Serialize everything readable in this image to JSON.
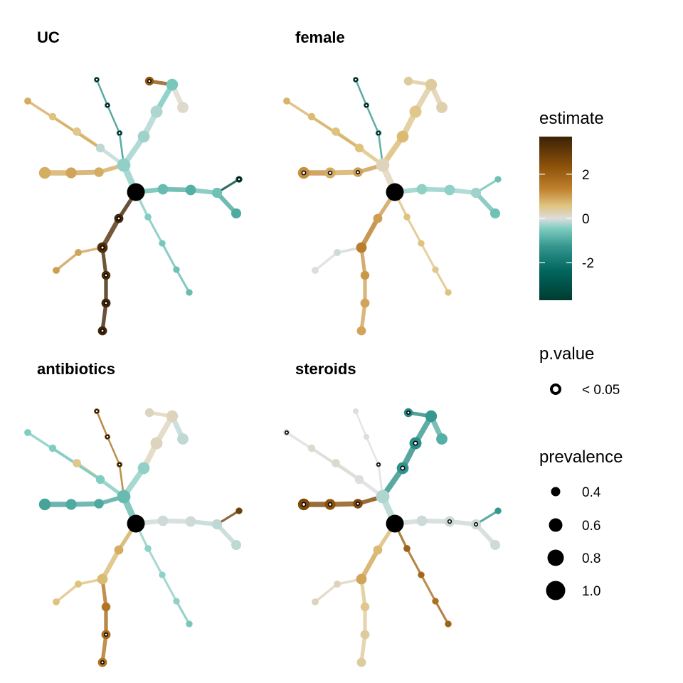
{
  "chart_data": {
    "type": "tree",
    "colors": {
      "low": "#003c30",
      "teal": "#35978f",
      "light_teal": "#80cdc1",
      "neutral": "#d9d9d9",
      "light_brown": "#dfc27d",
      "brown": "#bf812d",
      "dark": "#543005"
    },
    "legend": {
      "estimate": {
        "title": "estimate",
        "range": [
          -3.7,
          3.7
        ],
        "ticks": [
          2,
          0,
          -2
        ],
        "tick_labels": [
          "2",
          "0",
          "-2"
        ]
      },
      "pvalue": {
        "title": "p.value",
        "label": "< 0.05"
      },
      "prevalence": {
        "title": "prevalence",
        "values": [
          0.4,
          0.6,
          0.8,
          1.0
        ],
        "labels": [
          "0.4",
          "0.6",
          "0.8",
          "1.0"
        ]
      }
    },
    "tree": {
      "nodes": [
        {
          "id": "root",
          "prevalence": 1.0
        },
        {
          "id": "A",
          "parent": "root",
          "prevalence": 0.82
        },
        {
          "id": "A1",
          "parent": "A",
          "prevalence": 0.58
        },
        {
          "id": "A1a",
          "parent": "A1",
          "prevalence": 0.55
        },
        {
          "id": "A1b",
          "parent": "A1",
          "prevalence": 0.48
        },
        {
          "id": "A1c",
          "parent": "A1",
          "prevalence": 0.45
        },
        {
          "id": "A2",
          "parent": "A",
          "prevalence": 0.37
        },
        {
          "id": "A2a",
          "parent": "A2",
          "prevalence": 0.34
        },
        {
          "id": "A2b",
          "parent": "A2a",
          "prevalence": 0.33
        },
        {
          "id": "A3",
          "parent": "A",
          "prevalence": 0.75
        },
        {
          "id": "A3a",
          "parent": "A3",
          "prevalence": 0.76
        },
        {
          "id": "A3b",
          "parent": "A3a",
          "prevalence": 0.74
        },
        {
          "id": "A3b1",
          "parent": "A3b",
          "prevalence": 0.58
        },
        {
          "id": "A3b2",
          "parent": "A3b",
          "prevalence": 0.72
        },
        {
          "id": "B",
          "parent": "A",
          "prevalence": 0.63
        },
        {
          "id": "B1",
          "parent": "B",
          "prevalence": 0.7
        },
        {
          "id": "B2",
          "parent": "B1",
          "prevalence": 0.74
        },
        {
          "id": "C",
          "parent": "root",
          "prevalence": 0.68
        },
        {
          "id": "C1",
          "parent": "C",
          "prevalence": 0.68
        },
        {
          "id": "C2",
          "parent": "C1",
          "prevalence": 0.66
        },
        {
          "id": "C3",
          "parent": "C2",
          "prevalence": 0.42
        },
        {
          "id": "C4",
          "parent": "C2",
          "prevalence": 0.65
        },
        {
          "id": "D",
          "parent": "root",
          "prevalence": 0.44
        },
        {
          "id": "D1",
          "parent": "D",
          "prevalence": 0.42
        },
        {
          "id": "D2",
          "parent": "D1",
          "prevalence": 0.42
        },
        {
          "id": "D3",
          "parent": "D2",
          "prevalence": 0.42
        },
        {
          "id": "E",
          "parent": "root",
          "prevalence": 0.6
        },
        {
          "id": "E1",
          "parent": "E",
          "prevalence": 0.68
        },
        {
          "id": "E2",
          "parent": "E1",
          "prevalence": 0.58
        },
        {
          "id": "E2a",
          "parent": "E2",
          "prevalence": 0.6
        },
        {
          "id": "E2b",
          "parent": "E2a",
          "prevalence": 0.6
        },
        {
          "id": "E3",
          "parent": "E1",
          "prevalence": 0.46
        },
        {
          "id": "E3a",
          "parent": "E3",
          "prevalence": 0.45
        }
      ]
    },
    "panels": [
      {
        "title": "UC",
        "estimates": {
          "root": 0,
          "A": -0.5,
          "A1": -0.2,
          "A1a": 0.5,
          "A1b": 0.6,
          "A1c": 0.9,
          "A2": -1.5,
          "A2a": -1.6,
          "A2b": -1.6,
          "A3": -0.4,
          "A3a": -0.3,
          "A3b": -0.7,
          "A3b1": 2.5,
          "A3b2": 0.1,
          "B": 0.9,
          "B1": 1.0,
          "B2": 0.9,
          "C": -0.9,
          "C1": -1.1,
          "C2": -0.8,
          "C3": -3.4,
          "C4": -1.2,
          "D": -0.6,
          "D1": -0.7,
          "D2": -0.8,
          "D3": -0.9,
          "E": 3.6,
          "E1": 3.4,
          "E2": 3.5,
          "E2a": 3.6,
          "E2b": 3.6,
          "E3": 1.0,
          "E3a": 1.1
        },
        "significant": [
          "A2",
          "A2a",
          "A2b",
          "A3b1",
          "C3",
          "E",
          "E1",
          "E2",
          "E2a",
          "E2b"
        ]
      },
      {
        "title": "female",
        "estimates": {
          "root": 0,
          "A": 0.2,
          "A1": 0.6,
          "A1a": 0.6,
          "A1b": 0.7,
          "A1c": 0.8,
          "A2": -1.4,
          "A2a": -1.5,
          "A2b": -1.6,
          "A3": 0.7,
          "A3a": 0.5,
          "A3b": 0.4,
          "A3b1": 0.4,
          "A3b2": 0.3,
          "B": 1.1,
          "B1": 0.9,
          "B2": 1.3,
          "C": -0.5,
          "C1": -0.5,
          "C2": -0.4,
          "C3": -0.8,
          "C4": -0.8,
          "D": 0.6,
          "D1": 0.6,
          "D2": 0.5,
          "D3": 0.6,
          "E": 1.1,
          "E1": 1.6,
          "E2": 1.2,
          "E2a": 1.0,
          "E2b": 1.0,
          "E3": -0.1,
          "E3a": 0.0
        },
        "significant": [
          "A2",
          "A2a",
          "A2b",
          "B",
          "B1",
          "B2"
        ]
      },
      {
        "title": "antibiotics",
        "estimates": {
          "root": 0,
          "A": -0.9,
          "A1": -0.6,
          "A1a": 0.5,
          "A1b": -0.6,
          "A1c": -0.6,
          "A2": 1.8,
          "A2a": 1.9,
          "A2b": 2.0,
          "A3": -0.5,
          "A3a": 0.2,
          "A3b": 0.2,
          "A3b1": 0.2,
          "A3b2": -0.2,
          "B": -1.2,
          "B1": -1.2,
          "B2": -1.3,
          "C": -0.1,
          "C1": -0.1,
          "C2": -0.2,
          "C3": 3.0,
          "C4": -0.2,
          "D": -0.5,
          "D1": -0.5,
          "D2": -0.5,
          "D3": -0.7,
          "E": 0.9,
          "E1": 0.7,
          "E2": 1.8,
          "E2a": 2.0,
          "E2b": 1.8,
          "E3": 0.6,
          "E3a": 0.6
        },
        "significant": [
          "A2",
          "A2a",
          "A2b",
          "E2a",
          "E2b"
        ]
      },
      {
        "title": "steroids",
        "estimates": {
          "root": 0,
          "A": -0.3,
          "A1": 0.0,
          "A1a": 0.1,
          "A1b": 0.1,
          "A1c": 0.0,
          "A2": 0.0,
          "A2a": 0.0,
          "A2b": 0.0,
          "A3": -1.6,
          "A3a": -1.7,
          "A3b": -1.5,
          "A3b1": -1.8,
          "A3b2": -1.1,
          "B": 2.8,
          "B1": 2.6,
          "B2": 2.8,
          "C": -0.1,
          "C1": -0.1,
          "C2": -0.1,
          "C3": -1.5,
          "C4": -0.1,
          "D": 2.2,
          "D1": 2.1,
          "D2": 1.9,
          "D3": 2.2,
          "E": 0.7,
          "E1": 1.0,
          "E2": 0.5,
          "E2a": 0.4,
          "E2b": 0.4,
          "E3": 0.2,
          "E3a": 0.2
        },
        "significant": [
          "A1c",
          "A3",
          "A3a",
          "A3b1",
          "B",
          "B1",
          "B2",
          "C1",
          "C2",
          "A2"
        ]
      }
    ]
  }
}
